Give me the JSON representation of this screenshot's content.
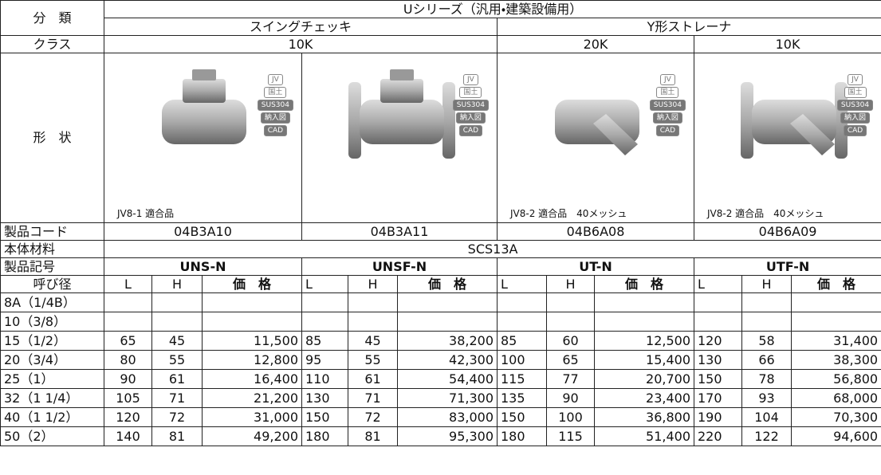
{
  "header": {
    "category_label": "分　類",
    "series": "Uシリーズ（汎用・建築設備用）",
    "types": [
      "スイングチェッキ",
      "Y形ストレーナ"
    ],
    "class_label": "クラス",
    "classes": [
      "10K",
      "20K",
      "10K"
    ],
    "shape_label": "形　状",
    "shape_tags": [
      "JV",
      "国土",
      "SUS304",
      "納入図",
      "CAD"
    ]
  },
  "products": [
    {
      "caption": "JV8-1 適合品",
      "code": "04B3A10",
      "model": "UNS-N"
    },
    {
      "code": "04B3A11",
      "model": "UNSF-N"
    },
    {
      "caption": "JV8-2 適合品　40メッシュ",
      "code": "04B6A08",
      "model": "UT-N"
    },
    {
      "caption": "JV8-2 適合品　40メッシュ",
      "code": "04B6A09",
      "model": "UTF-N"
    }
  ],
  "code_label": "製品コード",
  "material_label": "本体材料",
  "material": "SCS13A",
  "model_label": "製品記号",
  "table": {
    "size_label": "呼び径",
    "columns": [
      "L",
      "H",
      "価　格"
    ],
    "rows": [
      {
        "size": "8A（1/4B）",
        "cells": []
      },
      {
        "size": "10（3/8）",
        "cells": []
      },
      {
        "size": "15（1/2）",
        "cells": [
          65,
          45,
          "11,500",
          85,
          45,
          "38,200",
          85,
          60,
          "12,500",
          120,
          58,
          "31,400"
        ]
      },
      {
        "size": "20（3/4）",
        "cells": [
          80,
          55,
          "12,800",
          95,
          55,
          "42,300",
          100,
          65,
          "15,400",
          130,
          66,
          "38,300"
        ]
      },
      {
        "size": "25（1）",
        "cells": [
          90,
          61,
          "16,400",
          110,
          61,
          "54,400",
          115,
          77,
          "20,700",
          150,
          78,
          "56,800"
        ]
      },
      {
        "size": "32（1 1/4）",
        "cells": [
          105,
          71,
          "21,200",
          130,
          71,
          "71,300",
          135,
          90,
          "23,400",
          170,
          93,
          "68,000"
        ]
      },
      {
        "size": "40（1 1/2）",
        "cells": [
          120,
          72,
          "31,000",
          150,
          72,
          "83,000",
          150,
          100,
          "36,800",
          190,
          104,
          "70,300"
        ]
      },
      {
        "size": "50（2）",
        "cells": [
          140,
          81,
          "49,200",
          180,
          81,
          "95,300",
          180,
          115,
          "51,400",
          220,
          122,
          "94,600"
        ]
      }
    ]
  }
}
